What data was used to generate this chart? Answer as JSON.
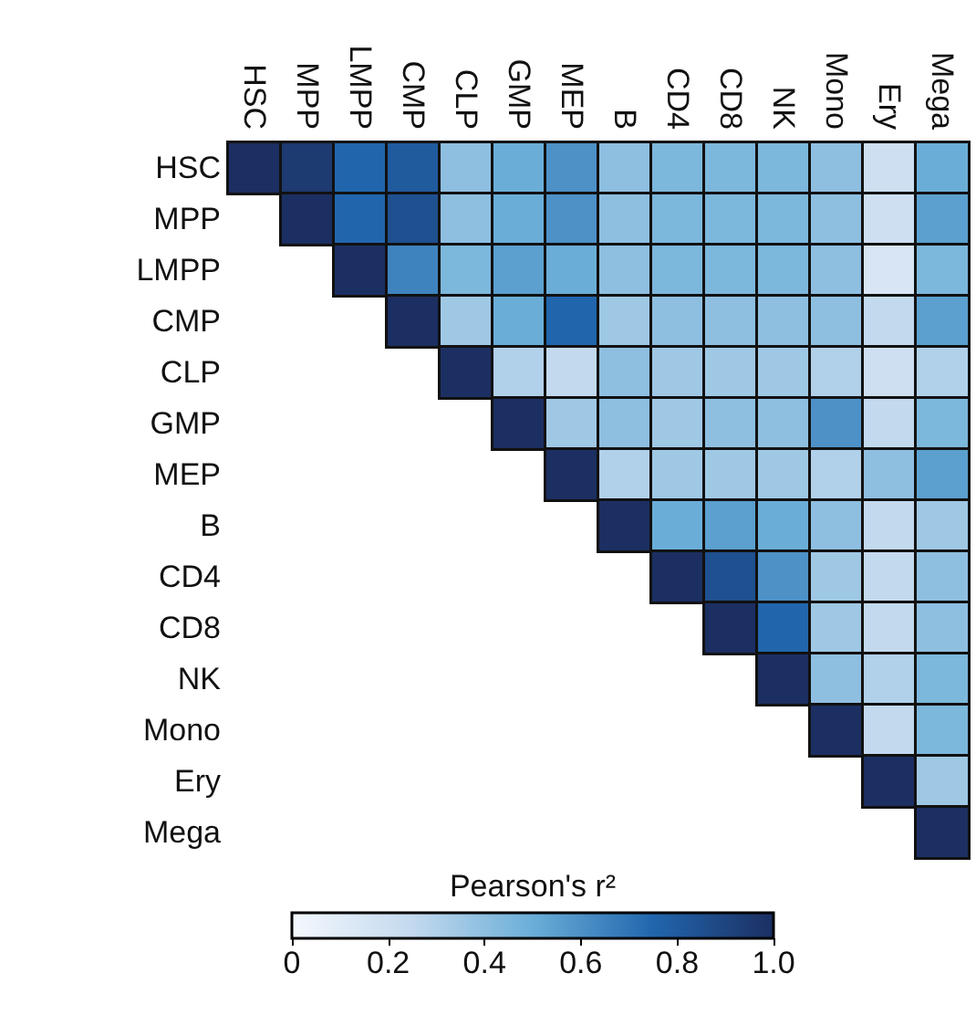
{
  "chart_data": {
    "type": "heatmap",
    "categories": [
      "HSC",
      "MPP",
      "LMPP",
      "CMP",
      "CLP",
      "GMP",
      "MEP",
      "B",
      "CD4",
      "CD8",
      "NK",
      "Mono",
      "Ery",
      "Mega"
    ],
    "y_categories": [
      "HSC",
      "MPP",
      "LMPP",
      "CMP",
      "CLP",
      "GMP",
      "MEP",
      "B",
      "CD4",
      "CD8",
      "NK",
      "Mono",
      "Ery",
      "Mega"
    ],
    "cells": [
      [
        1,
        0.95,
        0.75,
        0.8,
        0.4,
        0.5,
        0.6,
        0.4,
        0.45,
        0.45,
        0.45,
        0.4,
        0.2,
        0.5
      ],
      [
        null,
        1,
        0.75,
        0.85,
        0.4,
        0.5,
        0.6,
        0.4,
        0.45,
        0.45,
        0.45,
        0.4,
        0.2,
        0.55
      ],
      [
        null,
        null,
        1,
        0.65,
        0.45,
        0.55,
        0.5,
        0.4,
        0.45,
        0.45,
        0.45,
        0.4,
        0.15,
        0.45
      ],
      [
        null,
        null,
        null,
        1,
        0.35,
        0.5,
        0.75,
        0.35,
        0.4,
        0.4,
        0.4,
        0.4,
        0.25,
        0.55
      ],
      [
        null,
        null,
        null,
        null,
        1,
        0.3,
        0.25,
        0.4,
        0.35,
        0.35,
        0.35,
        0.3,
        0.2,
        0.3
      ],
      [
        null,
        null,
        null,
        null,
        null,
        1,
        0.35,
        0.4,
        0.35,
        0.4,
        0.4,
        0.6,
        0.25,
        0.45
      ],
      [
        null,
        null,
        null,
        null,
        null,
        null,
        1,
        0.3,
        0.35,
        0.35,
        0.35,
        0.3,
        0.4,
        0.55
      ],
      [
        null,
        null,
        null,
        null,
        null,
        null,
        null,
        1,
        0.5,
        0.55,
        0.5,
        0.4,
        0.25,
        0.35
      ],
      [
        null,
        null,
        null,
        null,
        null,
        null,
        null,
        null,
        1,
        0.85,
        0.6,
        0.35,
        0.25,
        0.4
      ],
      [
        null,
        null,
        null,
        null,
        null,
        null,
        null,
        null,
        null,
        1,
        0.75,
        0.35,
        0.25,
        0.4
      ],
      [
        null,
        null,
        null,
        null,
        null,
        null,
        null,
        null,
        null,
        null,
        1,
        0.4,
        0.3,
        0.45
      ],
      [
        null,
        null,
        null,
        null,
        null,
        null,
        null,
        null,
        null,
        null,
        null,
        1,
        0.25,
        0.45
      ],
      [
        null,
        null,
        null,
        null,
        null,
        null,
        null,
        null,
        null,
        null,
        null,
        null,
        1,
        0.35
      ],
      [
        null,
        null,
        null,
        null,
        null,
        null,
        null,
        null,
        null,
        null,
        null,
        null,
        null,
        1
      ]
    ],
    "clabel": "Pearson's r²",
    "clim": [
      0,
      1
    ],
    "cticks": [
      {
        "value": 0,
        "label": "0"
      },
      {
        "value": 0.2,
        "label": "0.2"
      },
      {
        "value": 0.4,
        "label": "0.4"
      },
      {
        "value": 0.6,
        "label": "0.6"
      },
      {
        "value": 0.8,
        "label": "0.8"
      },
      {
        "value": 1,
        "label": "1.0"
      }
    ]
  }
}
